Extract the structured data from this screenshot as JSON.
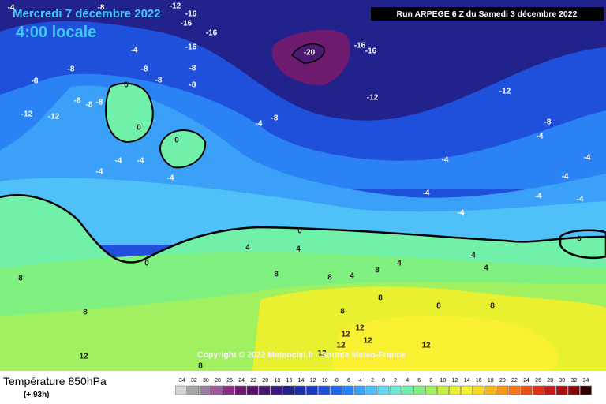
{
  "header": {
    "date": "Mercredi 7 décembre 2022",
    "time": "4:00 locale",
    "run": "Run ARPEGE 6 Z du Samedi 3 décembre 2022"
  },
  "copyright": "Copyright © 2022 Meteociel.fr - Source Meteo-France",
  "footer": {
    "title": "Température 850hPa",
    "lead": "(+ 93h)"
  },
  "legend": {
    "values": [
      -34,
      -32,
      -30,
      -28,
      -26,
      -24,
      -22,
      -20,
      -18,
      -16,
      -14,
      -12,
      -10,
      -8,
      -6,
      -4,
      -2,
      0,
      2,
      4,
      6,
      8,
      10,
      12,
      14,
      16,
      18,
      20,
      22,
      24,
      26,
      28,
      30,
      32,
      34
    ],
    "colors": [
      "#d4d4d4",
      "#a8a8a8",
      "#9a7fa0",
      "#a05a9e",
      "#8c2a8a",
      "#6e1a6e",
      "#5a1466",
      "#4b1a70",
      "#3a1a80",
      "#22228c",
      "#1c2ea8",
      "#1a3ac4",
      "#1e50dc",
      "#2366ee",
      "#2a82f4",
      "#3aa0f8",
      "#50c0f8",
      "#66d8f0",
      "#6ee8d0",
      "#70f0a8",
      "#80f080",
      "#a0f060",
      "#c8f040",
      "#e8f030",
      "#f8f030",
      "#f8d820",
      "#f8b818",
      "#f89818",
      "#f87818",
      "#f05018",
      "#e03018",
      "#c81818",
      "#a81010",
      "#880808",
      "#300000"
    ]
  },
  "contour_labels": [
    -4,
    -8,
    -12,
    -16,
    -16,
    -16,
    -16,
    -4,
    -8,
    -8,
    -8,
    -8,
    -8,
    -8,
    -12,
    -12,
    -8,
    -8,
    -8,
    0,
    0,
    0,
    -4,
    -8,
    -20,
    -16,
    -16,
    -12,
    -12,
    -8,
    -4,
    -4,
    -4,
    -4,
    -4,
    -4,
    -4,
    -4,
    -4,
    -4,
    -4,
    -4,
    0,
    0,
    0,
    4,
    4,
    4,
    4,
    4,
    4,
    8,
    8,
    8,
    8,
    8,
    8,
    8,
    8,
    8,
    12,
    12,
    12,
    12,
    12,
    12,
    12,
    8
  ]
}
